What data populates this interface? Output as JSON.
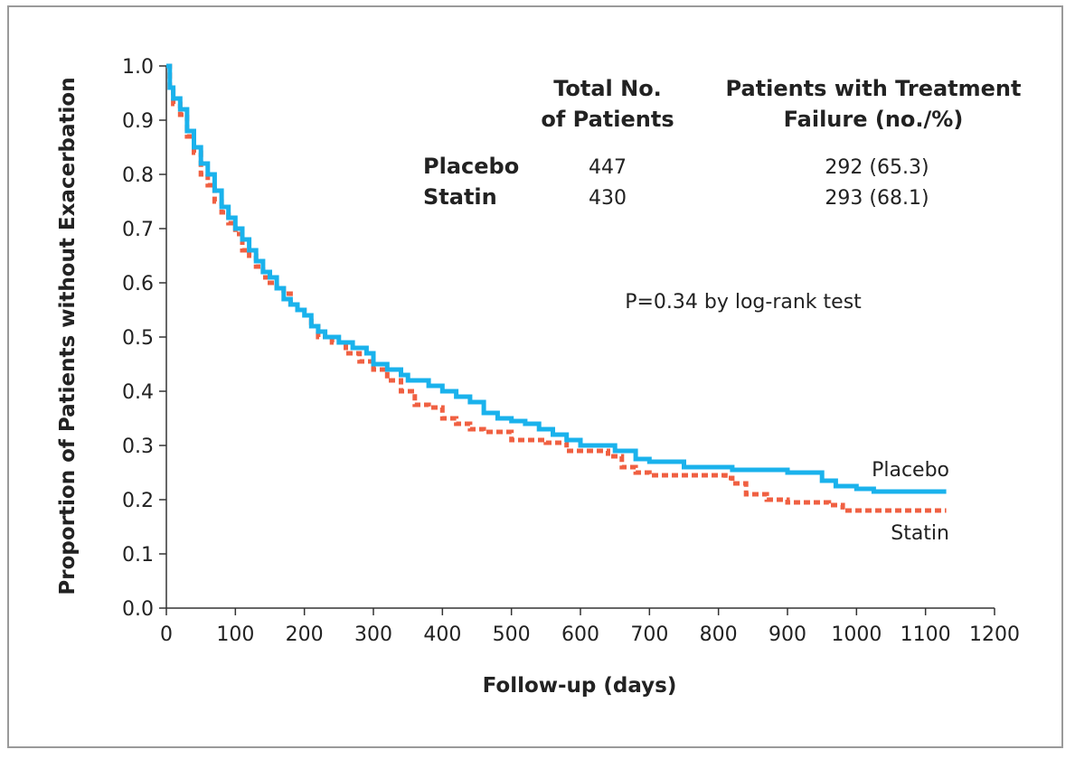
{
  "chart_data": {
    "type": "line",
    "xlabel": "Follow-up (days)",
    "ylabel": "Proportion of Patients without Exacerbation",
    "xlim": [
      0,
      1200
    ],
    "ylim": [
      0,
      1.0
    ],
    "x_ticks": [
      "0",
      "100",
      "200",
      "300",
      "400",
      "500",
      "600",
      "700",
      "800",
      "900",
      "1000",
      "1100",
      "1200"
    ],
    "y_ticks": [
      "0.0",
      "0.1",
      "0.2",
      "0.3",
      "0.4",
      "0.5",
      "0.6",
      "0.7",
      "0.8",
      "0.9",
      "1.0"
    ],
    "grid": false,
    "series": [
      {
        "name": "Placebo",
        "color": "#1ab2ec",
        "style": "solid",
        "points": [
          [
            0,
            1.0
          ],
          [
            5,
            0.96
          ],
          [
            10,
            0.94
          ],
          [
            20,
            0.92
          ],
          [
            30,
            0.88
          ],
          [
            40,
            0.85
          ],
          [
            50,
            0.82
          ],
          [
            60,
            0.8
          ],
          [
            70,
            0.77
          ],
          [
            80,
            0.74
          ],
          [
            90,
            0.72
          ],
          [
            100,
            0.7
          ],
          [
            110,
            0.68
          ],
          [
            120,
            0.66
          ],
          [
            130,
            0.64
          ],
          [
            140,
            0.62
          ],
          [
            150,
            0.61
          ],
          [
            160,
            0.59
          ],
          [
            170,
            0.57
          ],
          [
            180,
            0.56
          ],
          [
            190,
            0.55
          ],
          [
            200,
            0.54
          ],
          [
            210,
            0.52
          ],
          [
            220,
            0.51
          ],
          [
            230,
            0.5
          ],
          [
            250,
            0.49
          ],
          [
            270,
            0.48
          ],
          [
            290,
            0.47
          ],
          [
            300,
            0.45
          ],
          [
            320,
            0.44
          ],
          [
            340,
            0.43
          ],
          [
            350,
            0.42
          ],
          [
            380,
            0.41
          ],
          [
            400,
            0.4
          ],
          [
            420,
            0.39
          ],
          [
            440,
            0.38
          ],
          [
            460,
            0.36
          ],
          [
            480,
            0.35
          ],
          [
            500,
            0.345
          ],
          [
            520,
            0.34
          ],
          [
            540,
            0.33
          ],
          [
            560,
            0.32
          ],
          [
            580,
            0.31
          ],
          [
            600,
            0.3
          ],
          [
            650,
            0.29
          ],
          [
            680,
            0.275
          ],
          [
            700,
            0.27
          ],
          [
            750,
            0.26
          ],
          [
            820,
            0.255
          ],
          [
            900,
            0.25
          ],
          [
            950,
            0.235
          ],
          [
            970,
            0.225
          ],
          [
            1000,
            0.22
          ],
          [
            1025,
            0.215
          ],
          [
            1130,
            0.215
          ]
        ]
      },
      {
        "name": "Statin",
        "color": "#f06042",
        "style": "dashed",
        "points": [
          [
            0,
            1.0
          ],
          [
            5,
            0.96
          ],
          [
            10,
            0.93
          ],
          [
            20,
            0.91
          ],
          [
            30,
            0.87
          ],
          [
            40,
            0.84
          ],
          [
            50,
            0.8
          ],
          [
            60,
            0.78
          ],
          [
            70,
            0.75
          ],
          [
            80,
            0.73
          ],
          [
            90,
            0.71
          ],
          [
            100,
            0.69
          ],
          [
            110,
            0.66
          ],
          [
            120,
            0.65
          ],
          [
            130,
            0.63
          ],
          [
            140,
            0.61
          ],
          [
            150,
            0.6
          ],
          [
            160,
            0.59
          ],
          [
            170,
            0.58
          ],
          [
            180,
            0.56
          ],
          [
            190,
            0.55
          ],
          [
            200,
            0.54
          ],
          [
            210,
            0.52
          ],
          [
            220,
            0.5
          ],
          [
            240,
            0.49
          ],
          [
            260,
            0.47
          ],
          [
            280,
            0.455
          ],
          [
            300,
            0.44
          ],
          [
            320,
            0.42
          ],
          [
            340,
            0.4
          ],
          [
            360,
            0.375
          ],
          [
            380,
            0.37
          ],
          [
            400,
            0.35
          ],
          [
            420,
            0.34
          ],
          [
            440,
            0.33
          ],
          [
            460,
            0.325
          ],
          [
            500,
            0.31
          ],
          [
            550,
            0.305
          ],
          [
            580,
            0.29
          ],
          [
            640,
            0.28
          ],
          [
            660,
            0.26
          ],
          [
            680,
            0.25
          ],
          [
            700,
            0.245
          ],
          [
            800,
            0.245
          ],
          [
            810,
            0.24
          ],
          [
            820,
            0.23
          ],
          [
            840,
            0.21
          ],
          [
            870,
            0.2
          ],
          [
            900,
            0.195
          ],
          [
            960,
            0.19
          ],
          [
            980,
            0.18
          ],
          [
            1130,
            0.18
          ]
        ]
      }
    ],
    "curve_labels": {
      "placebo": "Placebo",
      "statin": "Statin"
    },
    "annotation": "P=0.34 by log-rank test",
    "table": {
      "col1_header": [
        "Total No.",
        "of Patients"
      ],
      "col2_header": [
        "Patients with Treatment",
        "Failure (no./%)"
      ],
      "rows": [
        {
          "group": "Placebo",
          "total": "447",
          "failure": "292 (65.3)"
        },
        {
          "group": "Statin",
          "total": "430",
          "failure": "293 (68.1)"
        }
      ]
    }
  }
}
